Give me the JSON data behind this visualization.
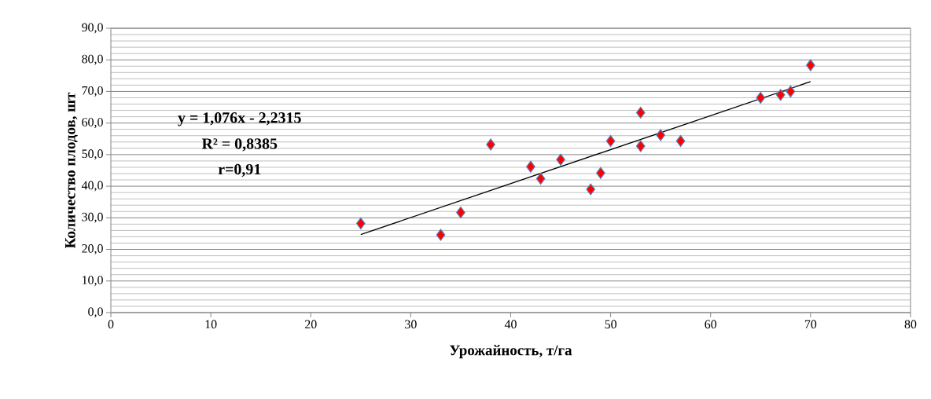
{
  "chart_data": {
    "type": "scatter",
    "xlabel": "Урожайность, т/га",
    "ylabel": "Количество плодов, шт",
    "annotations": [
      "y = 1,076x - 2,2315",
      "R² = 0,8385",
      "r=0,91"
    ],
    "series": [
      {
        "color": "#ff0000",
        "marker": "diamond",
        "x": [
          25,
          33,
          35,
          38,
          42,
          43,
          45,
          48,
          49,
          50,
          53,
          53,
          55,
          57,
          65,
          67,
          68,
          70
        ],
        "values": [
          28.2,
          24.6,
          31.7,
          53.2,
          46.2,
          42.4,
          48.4,
          39.0,
          44.2,
          54.3,
          63.3,
          52.7,
          56.2,
          54.3,
          68.0,
          68.9,
          70.0,
          78.3
        ]
      },
      {
        "type": "line",
        "color": "#000000",
        "marker": "none",
        "line_style": "solid",
        "x": [
          25,
          70
        ],
        "values": [
          24.7,
          73.1
        ]
      }
    ],
    "xlim": [
      0,
      80
    ],
    "xticks": [
      0,
      10,
      20,
      30,
      40,
      50,
      60,
      70,
      80
    ],
    "ylim": [
      0,
      90
    ],
    "yticks": [
      {
        "value": 0,
        "label": "0,0"
      },
      {
        "value": 10,
        "label": "10,0"
      },
      {
        "value": 20,
        "label": "20,0"
      },
      {
        "value": 30,
        "label": "30,0"
      },
      {
        "value": 40,
        "label": "40,0"
      },
      {
        "value": 50,
        "label": "50,0"
      },
      {
        "value": 60,
        "label": "60,0"
      },
      {
        "value": 70,
        "label": "70,0"
      },
      {
        "value": 80,
        "label": "80,0"
      },
      {
        "value": 90,
        "label": "90,0"
      }
    ],
    "grid": "y"
  }
}
